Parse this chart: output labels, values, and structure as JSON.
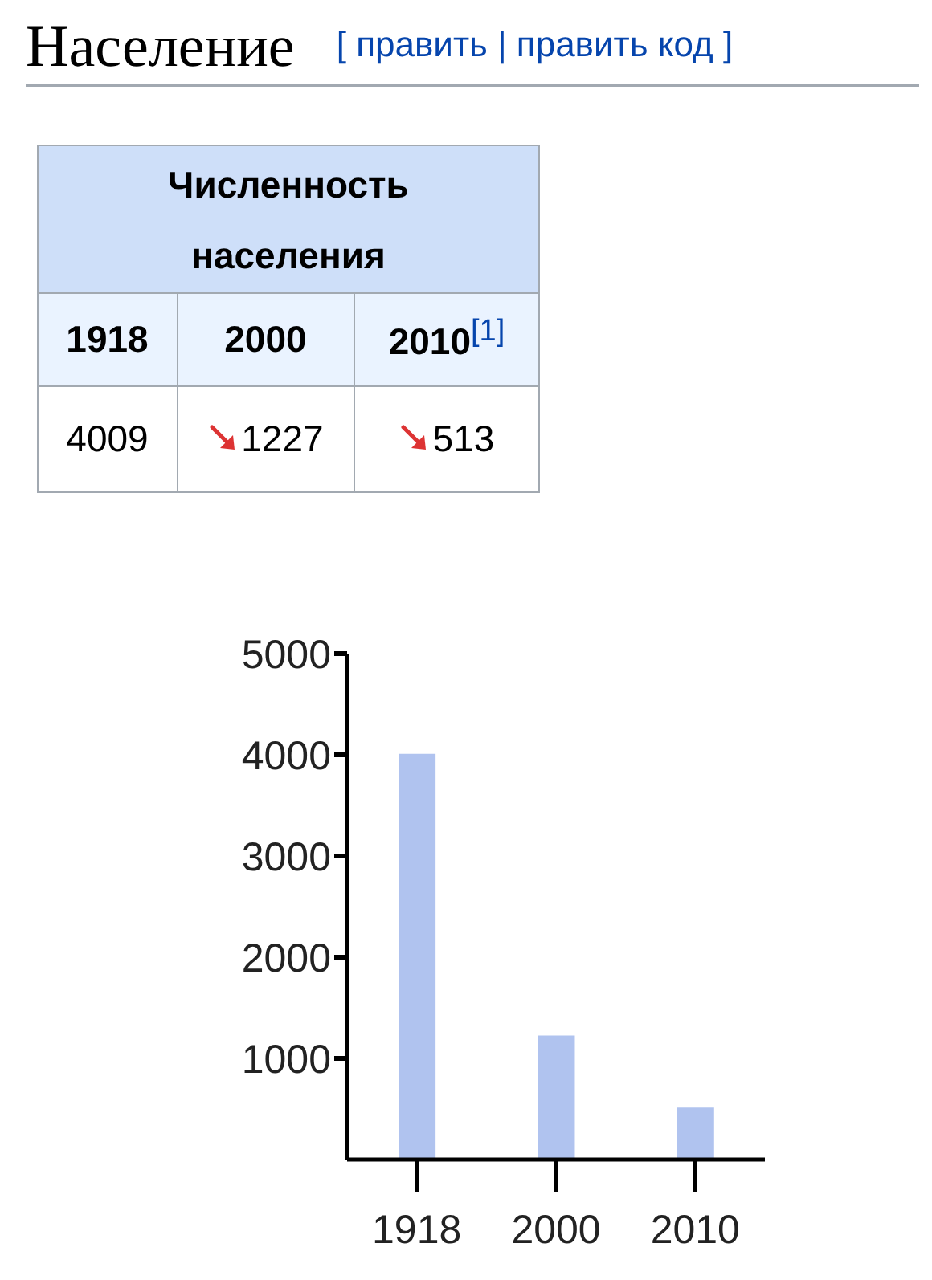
{
  "chart_data": [
    {
      "type": "other",
      "title": "Население",
      "subtitle": "Численность населения",
      "categories": [
        "1918",
        "2000",
        "2010"
      ],
      "annotations": [
        "[ править | править код ]",
        "[1]",
        "4009",
        "1227",
        "513"
      ]
    },
    {
      "type": "bar",
      "categories": [
        "1918",
        "2000",
        "2010"
      ],
      "values": [
        4009,
        1227,
        513
      ],
      "color": "#b0c3ef",
      "ylim": [
        0,
        5000
      ],
      "yticks": [
        1000,
        2000,
        3000,
        4000,
        5000
      ]
    }
  ]
}
